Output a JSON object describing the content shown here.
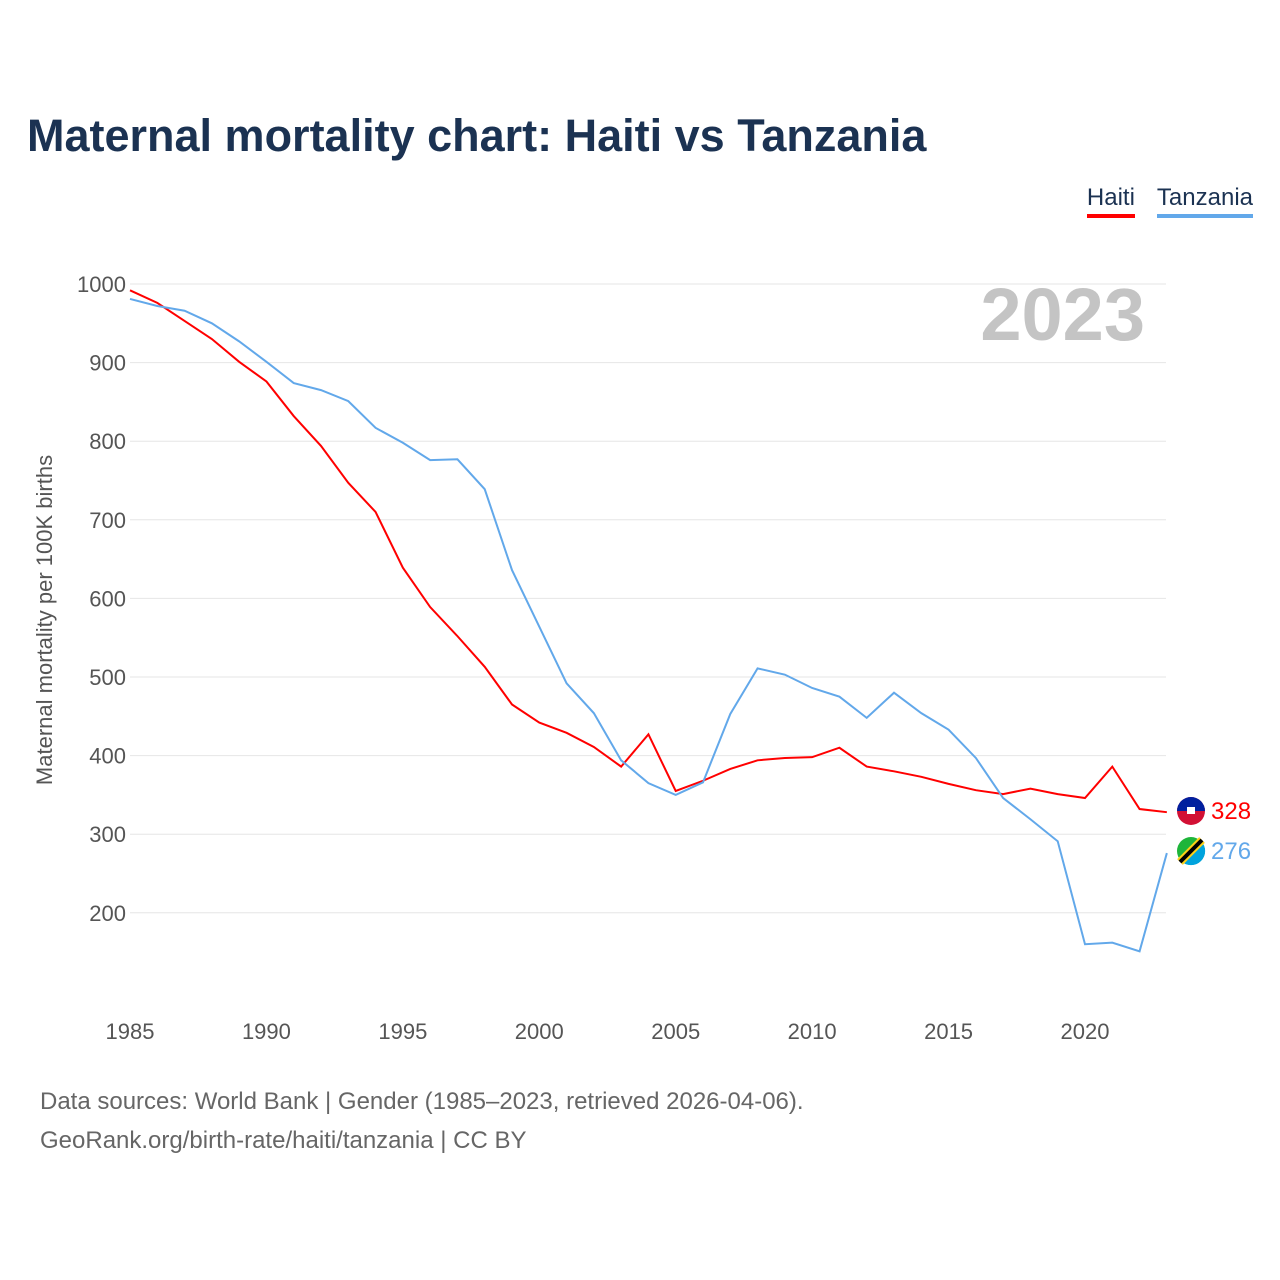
{
  "title": "Maternal mortality chart: Haiti vs Tanzania",
  "year_watermark": "2023",
  "sources": [
    "Data sources: World Bank | Gender (1985–2023, retrieved 2026-04-06).",
    "GeoRank.org/birth-rate/haiti/tanzania | CC BY"
  ],
  "chart_data": {
    "type": "line",
    "title": "Maternal mortality chart: Haiti vs Tanzania",
    "xlabel": "",
    "ylabel": "Maternal mortality per 100K births",
    "xlim": [
      1985,
      2023
    ],
    "ylim": [
      100,
      1000
    ],
    "xticks": [
      1985,
      1990,
      1995,
      2000,
      2005,
      2010,
      2015,
      2020
    ],
    "yticks": [
      200,
      300,
      400,
      500,
      600,
      700,
      800,
      900,
      1000
    ],
    "grid": true,
    "legend_position": "top-right",
    "x": [
      1985,
      1986,
      1987,
      1988,
      1989,
      1990,
      1991,
      1992,
      1993,
      1994,
      1995,
      1996,
      1997,
      1998,
      1999,
      2000,
      2001,
      2002,
      2003,
      2004,
      2005,
      2006,
      2007,
      2008,
      2009,
      2010,
      2011,
      2012,
      2013,
      2014,
      2015,
      2016,
      2017,
      2018,
      2019,
      2020,
      2021,
      2022,
      2023
    ],
    "series": [
      {
        "name": "Haiti",
        "color": "#ff0000",
        "end_label": "328",
        "values": [
          992,
          976,
          953,
          930,
          901,
          876,
          832,
          794,
          747,
          710,
          639,
          589,
          552,
          513,
          465,
          442,
          429,
          411,
          386,
          427,
          355,
          368,
          383,
          394,
          397,
          398,
          410,
          386,
          380,
          373,
          364,
          356,
          351,
          358,
          351,
          346,
          386,
          332,
          328
        ]
      },
      {
        "name": "Tanzania",
        "color": "#62a8ea",
        "end_label": "276",
        "values": [
          981,
          972,
          966,
          950,
          927,
          901,
          874,
          865,
          851,
          817,
          798,
          776,
          777,
          739,
          636,
          564,
          492,
          454,
          394,
          365,
          350,
          366,
          453,
          511,
          503,
          486,
          475,
          448,
          480,
          454,
          433,
          397,
          346,
          319,
          291,
          160,
          162,
          151,
          276
        ]
      }
    ]
  }
}
